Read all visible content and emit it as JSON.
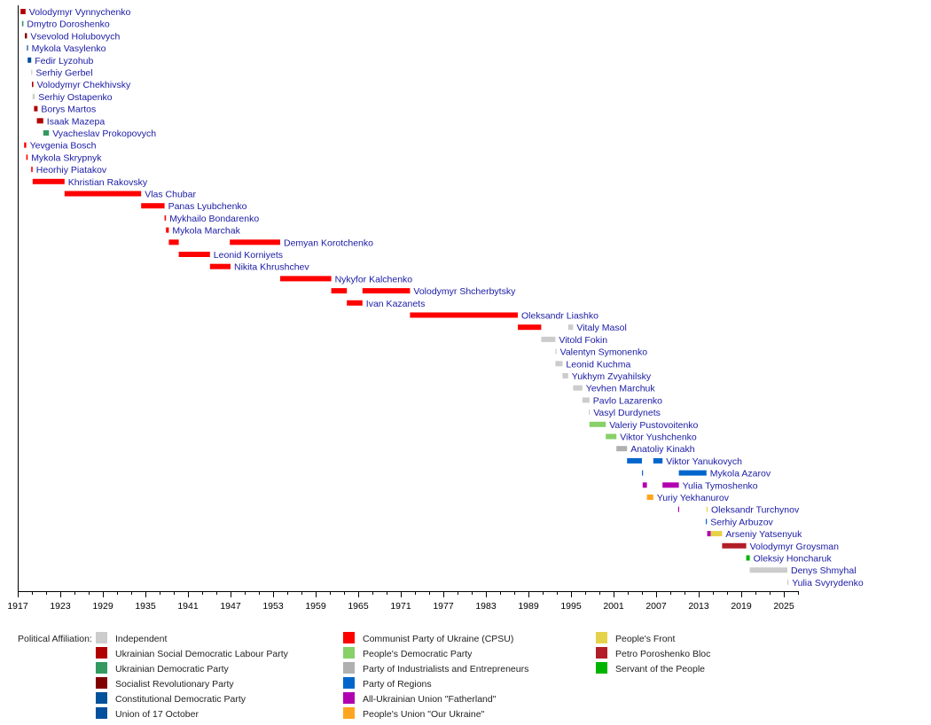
{
  "chart_data": {
    "type": "timeline",
    "xlim": [
      1917,
      2027
    ],
    "x_ticks": [
      1917,
      1923,
      1929,
      1935,
      1941,
      1947,
      1953,
      1959,
      1965,
      1971,
      1977,
      1983,
      1989,
      1995,
      2001,
      2007,
      2013,
      2019,
      2025
    ],
    "legend_title": "Political Affiliation:",
    "parties": [
      {
        "name": "Independent",
        "color": "#cccccc"
      },
      {
        "name": "Ukrainian Social Democratic Labour Party",
        "color": "#b00000"
      },
      {
        "name": "Ukrainian Democratic Party",
        "color": "#339960"
      },
      {
        "name": "Socialist Revolutionary Party",
        "color": "#800000"
      },
      {
        "name": "Constitutional Democratic Party",
        "color": "#00529b"
      },
      {
        "name": "Union of 17 October",
        "color": "#00509e"
      },
      {
        "name": "Communist Party of Ukraine (CPSU)",
        "color": "#ff0000"
      },
      {
        "name": "People's Democratic Party",
        "color": "#88d068"
      },
      {
        "name": "Party of Industrialists and Entrepreneurs",
        "color": "#b0b0b0"
      },
      {
        "name": "Party of Regions",
        "color": "#0066cc"
      },
      {
        "name": "All-Ukrainian Union \"Fatherland\"",
        "color": "#b000b0"
      },
      {
        "name": "People's Union \"Our Ukraine\"",
        "color": "#ffa520"
      },
      {
        "name": "People's Front",
        "color": "#e6d24a"
      },
      {
        "name": "Petro Poroshenko Bloc",
        "color": "#b21e28"
      },
      {
        "name": "Servant of the People",
        "color": "#00b400"
      }
    ],
    "rows": [
      {
        "name": "Volodymyr Vynnychenko",
        "terms": [
          [
            1917.4,
            1918.1,
            1
          ]
        ]
      },
      {
        "name": "Dmytro Doroshenko",
        "terms": [
          [
            1917.6,
            1917.8,
            2
          ]
        ]
      },
      {
        "name": "Vsevolod Holubovych",
        "terms": [
          [
            1918.0,
            1918.3,
            3
          ]
        ]
      },
      {
        "name": "Mykola Vasylenko",
        "terms": [
          [
            1918.3,
            1918.4,
            4
          ]
        ]
      },
      {
        "name": "Fedir Lyzohub",
        "terms": [
          [
            1918.4,
            1918.9,
            5
          ]
        ]
      },
      {
        "name": "Serhiy Gerbel",
        "terms": [
          [
            1918.9,
            1919.0,
            0
          ]
        ]
      },
      {
        "name": "Volodymyr Chekhivsky",
        "terms": [
          [
            1919.0,
            1919.2,
            1
          ]
        ]
      },
      {
        "name": "Serhiy Ostapenko",
        "terms": [
          [
            1919.1,
            1919.4,
            0
          ]
        ]
      },
      {
        "name": "Borys Martos",
        "terms": [
          [
            1919.3,
            1919.8,
            1
          ]
        ]
      },
      {
        "name": "Isaak Mazepa",
        "terms": [
          [
            1919.7,
            1920.6,
            1
          ]
        ]
      },
      {
        "name": "Vyacheslav Prokopovych",
        "terms": [
          [
            1920.6,
            1921.4,
            2
          ]
        ]
      },
      {
        "name": "Yevgenia Bosch",
        "terms": [
          [
            1917.9,
            1918.2,
            6
          ]
        ]
      },
      {
        "name": "Mykola Skrypnyk",
        "terms": [
          [
            1918.2,
            1918.4,
            6
          ]
        ]
      },
      {
        "name": "Heorhiy Piatakov",
        "terms": [
          [
            1918.9,
            1919.1,
            6
          ]
        ]
      },
      {
        "name": "Khristian Rakovsky",
        "terms": [
          [
            1919.1,
            1923.6,
            6
          ]
        ]
      },
      {
        "name": "Vlas Chubar",
        "terms": [
          [
            1923.6,
            1934.4,
            6
          ]
        ]
      },
      {
        "name": "Panas Lyubchenko",
        "terms": [
          [
            1934.4,
            1937.7,
            6
          ]
        ]
      },
      {
        "name": "Mykhailo Bondarenko",
        "terms": [
          [
            1937.7,
            1937.9,
            6
          ]
        ]
      },
      {
        "name": "Mykola Marchak",
        "terms": [
          [
            1937.9,
            1938.3,
            6
          ]
        ]
      },
      {
        "name": "Demyan Korotchenko",
        "terms": [
          [
            1938.3,
            1939.7,
            6
          ],
          [
            1946.9,
            1954.0,
            6
          ]
        ]
      },
      {
        "name": "Leonid Korniyets",
        "terms": [
          [
            1939.7,
            1944.1,
            6
          ]
        ]
      },
      {
        "name": "Nikita Khrushchev",
        "terms": [
          [
            1944.1,
            1947.0,
            6
          ]
        ]
      },
      {
        "name": "Nykyfor Kalchenko",
        "terms": [
          [
            1954.0,
            1961.2,
            6
          ]
        ]
      },
      {
        "name": "Volodymyr Shcherbytsky",
        "terms": [
          [
            1961.2,
            1963.4,
            6
          ],
          [
            1965.6,
            1972.3,
            6
          ]
        ]
      },
      {
        "name": "Ivan Kazanets",
        "terms": [
          [
            1963.4,
            1965.6,
            6
          ]
        ]
      },
      {
        "name": "Oleksandr Liashko",
        "terms": [
          [
            1972.3,
            1987.5,
            6
          ]
        ]
      },
      {
        "name": "Vitaly Masol",
        "terms": [
          [
            1987.5,
            1990.8,
            6
          ],
          [
            1994.6,
            1995.3,
            0
          ]
        ]
      },
      {
        "name": "Vitold Fokin",
        "terms": [
          [
            1990.8,
            1992.8,
            0
          ]
        ]
      },
      {
        "name": "Valentyn Symonenko",
        "terms": [
          [
            1992.8,
            1992.9,
            0
          ]
        ]
      },
      {
        "name": "Leonid Kuchma",
        "terms": [
          [
            1992.8,
            1993.8,
            0
          ]
        ]
      },
      {
        "name": "Yukhym Zvyahilsky",
        "terms": [
          [
            1993.8,
            1994.6,
            0
          ]
        ]
      },
      {
        "name": "Yevhen Marchuk",
        "terms": [
          [
            1995.3,
            1996.6,
            0
          ]
        ]
      },
      {
        "name": "Pavlo Lazarenko",
        "terms": [
          [
            1996.6,
            1997.6,
            0
          ]
        ]
      },
      {
        "name": "Vasyl Durdynets",
        "terms": [
          [
            1997.5,
            1997.6,
            0
          ]
        ]
      },
      {
        "name": "Valeriy Pustovoitenko",
        "terms": [
          [
            1997.6,
            1999.9,
            7
          ]
        ]
      },
      {
        "name": "Viktor Yushchenko",
        "terms": [
          [
            1999.9,
            2001.4,
            7
          ]
        ]
      },
      {
        "name": "Anatoliy Kinakh",
        "terms": [
          [
            2001.4,
            2002.9,
            8
          ]
        ]
      },
      {
        "name": "Viktor Yanukovych",
        "terms": [
          [
            2002.9,
            2005.0,
            9
          ],
          [
            2006.6,
            2007.9,
            9
          ]
        ]
      },
      {
        "name": "Mykola Azarov",
        "terms": [
          [
            2005.0,
            2005.1,
            9
          ],
          [
            2010.2,
            2014.1,
            9
          ]
        ]
      },
      {
        "name": "Yulia Tymoshenko",
        "terms": [
          [
            2005.1,
            2005.7,
            10
          ],
          [
            2007.9,
            2010.2,
            10
          ]
        ]
      },
      {
        "name": "Yuriy Yekhanurov",
        "terms": [
          [
            2005.7,
            2006.6,
            11
          ]
        ]
      },
      {
        "name": "Oleksandr Turchynov",
        "terms": [
          [
            2010.1,
            2010.2,
            10
          ],
          [
            2014.1,
            2014.2,
            12
          ]
        ]
      },
      {
        "name": "Serhiy Arbuzov",
        "terms": [
          [
            2014.0,
            2014.1,
            9
          ]
        ]
      },
      {
        "name": "Arseniy Yatsenyuk",
        "terms": [
          [
            2014.2,
            2014.7,
            10
          ],
          [
            2014.7,
            2016.3,
            12
          ]
        ]
      },
      {
        "name": "Volodymyr Groysman",
        "terms": [
          [
            2016.3,
            2019.7,
            13
          ]
        ]
      },
      {
        "name": "Oleksiy Honcharuk",
        "terms": [
          [
            2019.7,
            2020.2,
            14
          ]
        ]
      },
      {
        "name": "Denys Shmyhal",
        "terms": [
          [
            2020.2,
            2025.5,
            0
          ]
        ]
      },
      {
        "name": "Yulia Svyrydenko",
        "terms": [
          [
            2025.5,
            2025.6,
            0
          ]
        ]
      }
    ]
  }
}
